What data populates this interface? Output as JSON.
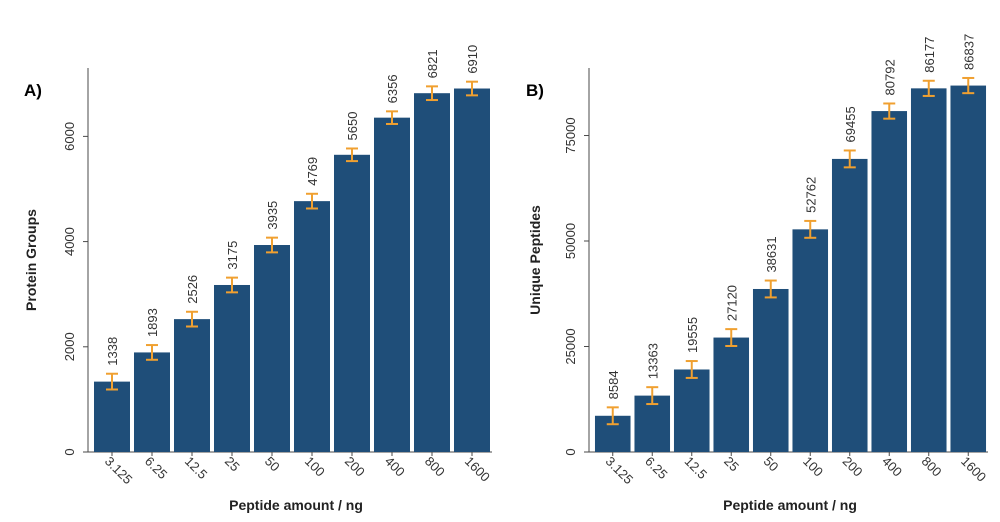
{
  "colors": {
    "bar": "#1f4e79",
    "error_bar": "#f0a030",
    "panel_letter": "#2e86c1"
  },
  "chart_data": [
    {
      "type": "bar",
      "panel": "A)",
      "categories": [
        "3.125",
        "6.25",
        "12.5",
        "25",
        "50",
        "100",
        "200",
        "400",
        "800",
        "1600"
      ],
      "values": [
        1338,
        1893,
        2526,
        3175,
        3935,
        4769,
        5650,
        6356,
        6821,
        6910
      ],
      "errors": [
        150,
        140,
        140,
        140,
        140,
        140,
        120,
        120,
        130,
        130
      ],
      "data_labels": [
        "1338",
        "1893",
        "2526",
        "3175",
        "3935",
        "4769",
        "5650",
        "6356",
        "6821",
        "6910"
      ],
      "xlabel": "Peptide amount / ng",
      "ylabel": "Protein Groups",
      "ylim": [
        0,
        7300
      ],
      "yticks": [
        0,
        2000,
        4000,
        6000
      ],
      "ytick_labels": [
        "0",
        "2000",
        "4000",
        "6000"
      ],
      "grid": false,
      "legend": "none"
    },
    {
      "type": "bar",
      "panel": "B)",
      "categories": [
        "3.125",
        "6.25",
        "12.5",
        "25",
        "50",
        "100",
        "200",
        "400",
        "800",
        "1600"
      ],
      "values": [
        8584,
        13363,
        19555,
        27120,
        38631,
        52762,
        69455,
        80792,
        86177,
        86837
      ],
      "errors": [
        2000,
        2000,
        2000,
        2000,
        2000,
        2000,
        2000,
        1800,
        1800,
        1800
      ],
      "data_labels": [
        "8584",
        "13363",
        "19555",
        "27120",
        "38631",
        "52762",
        "69455",
        "80792",
        "86177",
        "86837"
      ],
      "xlabel": "Peptide amount / ng",
      "ylabel": "Unique Peptides",
      "ylim": [
        0,
        91000
      ],
      "yticks": [
        0,
        25000,
        50000,
        75000
      ],
      "ytick_labels": [
        "0",
        "25000",
        "50000",
        "75000"
      ],
      "grid": false,
      "legend": "none"
    }
  ]
}
